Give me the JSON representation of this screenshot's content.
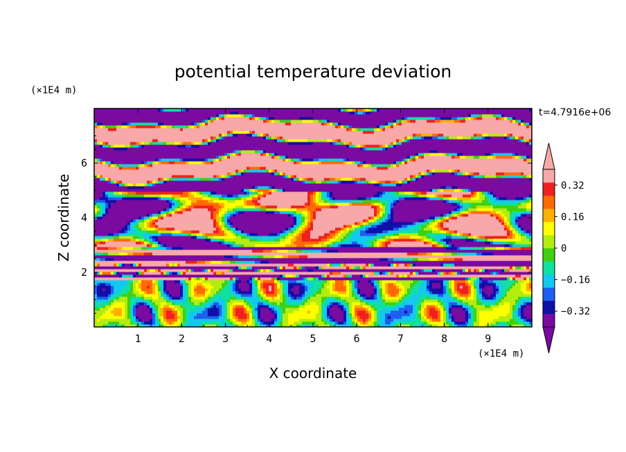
{
  "chart_data": {
    "type": "heatmap",
    "title": "potential temperature deviation",
    "xlabel": "X coordinate",
    "ylabel": "Z coordinate",
    "x_unit": "(×1E4 m)",
    "y_unit": "(×1E4 m)",
    "time_label": "t=4.7916e+06",
    "xlim": [
      0,
      10
    ],
    "ylim": [
      0,
      8
    ],
    "x_ticks": [
      1,
      2,
      3,
      4,
      5,
      6,
      7,
      8,
      9
    ],
    "y_ticks": [
      2,
      4,
      6
    ],
    "colorbar": {
      "levels": [
        -0.4,
        -0.36,
        -0.32,
        -0.28,
        -0.24,
        -0.2,
        -0.16,
        -0.12,
        -0.08,
        -0.04,
        0,
        0.04,
        0.08,
        0.12,
        0.16,
        0.2,
        0.24,
        0.28,
        0.32,
        0.36,
        0.4
      ],
      "colors": [
        "#7a0aa0",
        "#1010a8",
        "#1e5ff0",
        "#14c8f0",
        "#10e0a0",
        "#40d010",
        "#b4ec10",
        "#ffff00",
        "#ffb000",
        "#ff6a00",
        "#f02020",
        "#f8a8a8"
      ],
      "tick_labels": [
        "0.32",
        "0.16",
        "0",
        "−0.16",
        "−0.32"
      ],
      "tick_values": [
        0.32,
        0.16,
        0,
        -0.16,
        -0.32
      ],
      "vmin": -0.4,
      "vmax": 0.4,
      "extend": "both"
    },
    "field_description_regions": [
      {
        "z_range": [
          5.0,
          8.0
        ],
        "value": "alternating bands of >0.4 and <-0.4"
      },
      {
        "z_range": [
          2.2,
          5.0
        ],
        "value": "cells of >0.4 and <-0.4 with narrow gradient fringes"
      },
      {
        "z_range": [
          0,
          1.7
        ],
        "value": "eddies between -0.36 and 0.36"
      }
    ]
  }
}
